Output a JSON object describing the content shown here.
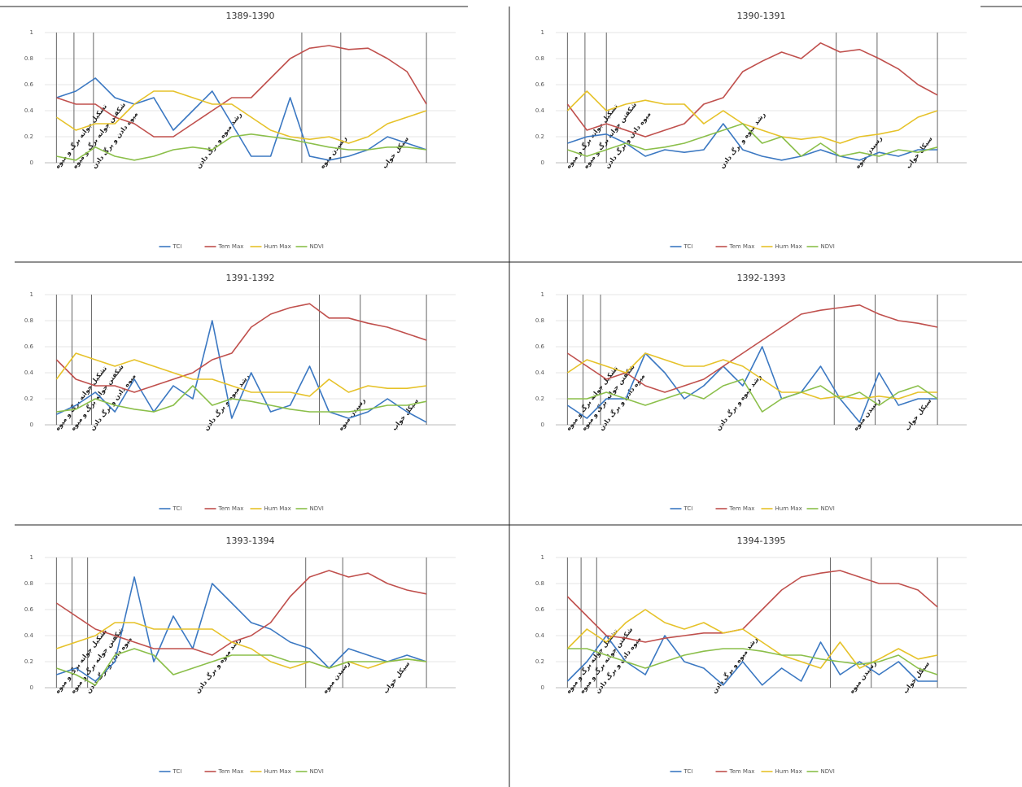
{
  "chart_data": [
    {
      "type": "line",
      "title": "1389-1390",
      "x": [
        0,
        1,
        2,
        3,
        4,
        5,
        6,
        7,
        8,
        9,
        10,
        11,
        12,
        13,
        14,
        15,
        16,
        17,
        18,
        19
      ],
      "xlim": [
        -0.6,
        20.5
      ],
      "ylim": [
        0,
        1
      ],
      "yticks": [
        0,
        0.2,
        0.4,
        0.6,
        0.8,
        1
      ],
      "grid": true,
      "stage_lines": [
        0,
        0.9,
        1.9,
        12.6,
        14.6,
        19
      ],
      "stages": [
        "تشکیل جوانه برگ و میوه",
        "شکفتن جوانه برگ و میوه",
        "میوه دادن و برگ دادن",
        "رشد میوه و برگ دادن",
        "رسیدن میوه",
        "سیکل خواب"
      ],
      "series": [
        {
          "name": "TCI",
          "color": "#3b78c2",
          "values": [
            0.5,
            0.55,
            0.65,
            0.5,
            0.45,
            0.5,
            0.25,
            0.4,
            0.55,
            0.3,
            0.05,
            0.05,
            0.5,
            0.05,
            0.02,
            0.05,
            0.1,
            0.2,
            0.15,
            0.1
          ]
        },
        {
          "name": "Tem Max",
          "color": "#c0504d",
          "values": [
            0.5,
            0.45,
            0.45,
            0.35,
            0.3,
            0.2,
            0.2,
            0.3,
            0.4,
            0.5,
            0.5,
            0.65,
            0.8,
            0.88,
            0.9,
            0.87,
            0.88,
            0.8,
            0.7,
            0.45
          ]
        },
        {
          "name": "Hum Max",
          "color": "#e6c229",
          "values": [
            0.35,
            0.25,
            0.3,
            0.3,
            0.45,
            0.55,
            0.55,
            0.5,
            0.45,
            0.45,
            0.35,
            0.25,
            0.2,
            0.18,
            0.2,
            0.15,
            0.2,
            0.3,
            0.35,
            0.4
          ]
        },
        {
          "name": "NDVI",
          "color": "#8bbf4a",
          "values": [
            0.05,
            0.02,
            0.12,
            0.05,
            0.02,
            0.05,
            0.1,
            0.12,
            0.1,
            0.2,
            0.22,
            0.2,
            0.18,
            0.15,
            0.12,
            0.1,
            0.1,
            0.12,
            0.12,
            0.1
          ]
        }
      ]
    },
    {
      "type": "line",
      "title": "1390-1391",
      "x": [
        0,
        1,
        2,
        3,
        4,
        5,
        6,
        7,
        8,
        9,
        10,
        11,
        12,
        13,
        14,
        15,
        16,
        17,
        18,
        19
      ],
      "xlim": [
        -0.6,
        20.5
      ],
      "ylim": [
        0,
        1
      ],
      "yticks": [
        0,
        0.2,
        0.4,
        0.6,
        0.8,
        1
      ],
      "grid": true,
      "stage_lines": [
        0,
        0.9,
        2,
        13.8,
        15.9,
        19
      ],
      "stages": [
        "تشکیل جوانه برگ و میوه",
        "شکفتن جوانه برگ و میوه",
        "میوه دادن و برگ دادن",
        "رشد میوه و برگ دادن",
        "رسیدن میوه",
        "سیکل خواب"
      ],
      "series": [
        {
          "name": "TCI",
          "color": "#3b78c2",
          "values": [
            0.15,
            0.2,
            0.22,
            0.15,
            0.05,
            0.1,
            0.08,
            0.1,
            0.3,
            0.1,
            0.05,
            0.02,
            0.05,
            0.1,
            0.05,
            0.02,
            0.08,
            0.05,
            0.1,
            0.1
          ]
        },
        {
          "name": "Tem Max",
          "color": "#c0504d",
          "values": [
            0.45,
            0.25,
            0.3,
            0.25,
            0.2,
            0.25,
            0.3,
            0.45,
            0.5,
            0.7,
            0.78,
            0.85,
            0.8,
            0.92,
            0.85,
            0.87,
            0.8,
            0.72,
            0.6,
            0.52
          ]
        },
        {
          "name": "Hum Max",
          "color": "#e6c229",
          "values": [
            0.4,
            0.55,
            0.4,
            0.45,
            0.48,
            0.45,
            0.45,
            0.3,
            0.4,
            0.3,
            0.25,
            0.2,
            0.18,
            0.2,
            0.15,
            0.2,
            0.22,
            0.25,
            0.35,
            0.4
          ]
        },
        {
          "name": "NDVI",
          "color": "#8bbf4a",
          "values": [
            0.1,
            0.05,
            0.1,
            0.15,
            0.1,
            0.12,
            0.15,
            0.2,
            0.25,
            0.3,
            0.15,
            0.2,
            0.05,
            0.15,
            0.05,
            0.08,
            0.05,
            0.1,
            0.08,
            0.12
          ]
        }
      ]
    },
    {
      "type": "line",
      "title": "1391-1392",
      "x": [
        0,
        1,
        2,
        3,
        4,
        5,
        6,
        7,
        8,
        9,
        10,
        11,
        12,
        13,
        14,
        15,
        16,
        17,
        18,
        19
      ],
      "xlim": [
        -0.6,
        20.5
      ],
      "ylim": [
        0,
        1
      ],
      "yticks": [
        0,
        0.2,
        0.4,
        0.6,
        0.8,
        1
      ],
      "grid": true,
      "stage_lines": [
        0,
        0.8,
        1.8,
        13.5,
        15.6,
        19
      ],
      "stages": [
        "تشکیل جوانه برگ و میوه",
        "شکفتن جوانه برگ و میوه",
        "میوه دادن و برگ دادن",
        "رشد میوه و برگ دادن",
        "رسیدن میوه",
        "سیکل خواب"
      ],
      "series": [
        {
          "name": "TCI",
          "color": "#3b78c2",
          "values": [
            0.08,
            0.15,
            0.25,
            0.1,
            0.35,
            0.1,
            0.3,
            0.2,
            0.8,
            0.05,
            0.4,
            0.1,
            0.15,
            0.45,
            0.1,
            0.05,
            0.1,
            0.2,
            0.1,
            0.02
          ]
        },
        {
          "name": "Tem Max",
          "color": "#c0504d",
          "values": [
            0.5,
            0.35,
            0.3,
            0.3,
            0.25,
            0.3,
            0.35,
            0.4,
            0.5,
            0.55,
            0.75,
            0.85,
            0.9,
            0.93,
            0.82,
            0.82,
            0.78,
            0.75,
            0.7,
            0.65
          ]
        },
        {
          "name": "Hum Max",
          "color": "#e6c229",
          "values": [
            0.35,
            0.55,
            0.5,
            0.45,
            0.5,
            0.45,
            0.4,
            0.35,
            0.35,
            0.3,
            0.25,
            0.25,
            0.25,
            0.22,
            0.35,
            0.25,
            0.3,
            0.28,
            0.28,
            0.3
          ]
        },
        {
          "name": "NDVI",
          "color": "#8bbf4a",
          "values": [
            0.1,
            0.12,
            0.2,
            0.15,
            0.12,
            0.1,
            0.15,
            0.3,
            0.15,
            0.2,
            0.18,
            0.15,
            0.12,
            0.1,
            0.1,
            0.1,
            0.12,
            0.15,
            0.15,
            0.18
          ]
        }
      ]
    },
    {
      "type": "line",
      "title": "1392-1393",
      "x": [
        0,
        1,
        2,
        3,
        4,
        5,
        6,
        7,
        8,
        9,
        10,
        11,
        12,
        13,
        14,
        15,
        16,
        17,
        18,
        19
      ],
      "xlim": [
        -0.6,
        20.5
      ],
      "ylim": [
        0,
        1
      ],
      "yticks": [
        0,
        0.2,
        0.4,
        0.6,
        0.8,
        1
      ],
      "grid": true,
      "stage_lines": [
        0,
        0.8,
        1.7,
        13.7,
        15.8,
        19
      ],
      "stages": [
        "تشکیل جوانه برگ و میوه",
        "شکفتن جوانه برگ و میوه",
        "میوه دادن و برگ دادن",
        "رشد میوه و برگ دادن",
        "رسیدن میوه",
        "سیکل خواب"
      ],
      "series": [
        {
          "name": "TCI",
          "color": "#3b78c2",
          "values": [
            0.15,
            0.05,
            0.2,
            0.2,
            0.55,
            0.4,
            0.2,
            0.3,
            0.45,
            0.3,
            0.6,
            0.2,
            0.25,
            0.45,
            0.2,
            0.02,
            0.4,
            0.15,
            0.2,
            0.2
          ]
        },
        {
          "name": "Tem Max",
          "color": "#c0504d",
          "values": [
            0.55,
            0.45,
            0.35,
            0.4,
            0.3,
            0.25,
            0.3,
            0.35,
            0.45,
            0.55,
            0.65,
            0.75,
            0.85,
            0.88,
            0.9,
            0.92,
            0.85,
            0.8,
            0.78,
            0.75
          ]
        },
        {
          "name": "Hum Max",
          "color": "#e6c229",
          "values": [
            0.4,
            0.5,
            0.45,
            0.4,
            0.55,
            0.5,
            0.45,
            0.45,
            0.5,
            0.45,
            0.35,
            0.25,
            0.25,
            0.2,
            0.22,
            0.2,
            0.22,
            0.2,
            0.25,
            0.25
          ]
        },
        {
          "name": "NDVI",
          "color": "#8bbf4a",
          "values": [
            0.2,
            0.2,
            0.25,
            0.2,
            0.15,
            0.2,
            0.25,
            0.2,
            0.3,
            0.35,
            0.1,
            0.2,
            0.25,
            0.3,
            0.2,
            0.25,
            0.15,
            0.25,
            0.3,
            0.2
          ]
        }
      ]
    },
    {
      "type": "line",
      "title": "1393-1394",
      "x": [
        0,
        1,
        2,
        3,
        4,
        5,
        6,
        7,
        8,
        9,
        10,
        11,
        12,
        13,
        14,
        15,
        16,
        17,
        18,
        19
      ],
      "xlim": [
        -0.6,
        20.5
      ],
      "ylim": [
        0,
        1
      ],
      "yticks": [
        0,
        0.2,
        0.4,
        0.6,
        0.8,
        1
      ],
      "grid": true,
      "stage_lines": [
        0,
        0.8,
        1.6,
        12.8,
        14.7,
        19
      ],
      "stages": [
        "تشکیل جوانه برگ و میوه",
        "شکفتن جوانه برگ و میوه",
        "میوه دادن و برگ دادن",
        "رشد میوه و برگ دادن",
        "رسیدن میوه",
        "سیکل خواب"
      ],
      "series": [
        {
          "name": "TCI",
          "color": "#3b78c2",
          "values": [
            0.1,
            0.15,
            0.05,
            0.2,
            0.85,
            0.2,
            0.55,
            0.3,
            0.8,
            0.65,
            0.5,
            0.45,
            0.35,
            0.3,
            0.15,
            0.3,
            0.25,
            0.2,
            0.25,
            0.2
          ]
        },
        {
          "name": "Tem Max",
          "color": "#c0504d",
          "values": [
            0.65,
            0.55,
            0.45,
            0.4,
            0.35,
            0.3,
            0.3,
            0.3,
            0.25,
            0.35,
            0.4,
            0.5,
            0.7,
            0.85,
            0.9,
            0.85,
            0.88,
            0.8,
            0.75,
            0.72
          ]
        },
        {
          "name": "Hum Max",
          "color": "#e6c229",
          "values": [
            0.3,
            0.35,
            0.4,
            0.5,
            0.5,
            0.45,
            0.45,
            0.45,
            0.45,
            0.35,
            0.3,
            0.2,
            0.15,
            0.2,
            0.15,
            0.2,
            0.15,
            0.2,
            0.22,
            0.2
          ]
        },
        {
          "name": "NDVI",
          "color": "#8bbf4a",
          "values": [
            0.15,
            0.1,
            0.02,
            0.25,
            0.3,
            0.25,
            0.1,
            0.15,
            0.2,
            0.25,
            0.25,
            0.25,
            0.2,
            0.2,
            0.15,
            0.2,
            0.2,
            0.2,
            0.22,
            0.2
          ]
        }
      ]
    },
    {
      "type": "line",
      "title": "1394-1395",
      "x": [
        0,
        1,
        2,
        3,
        4,
        5,
        6,
        7,
        8,
        9,
        10,
        11,
        12,
        13,
        14,
        15,
        16,
        17,
        18,
        19
      ],
      "xlim": [
        -0.6,
        20.5
      ],
      "ylim": [
        0,
        1
      ],
      "yticks": [
        0,
        0.2,
        0.4,
        0.6,
        0.8,
        1
      ],
      "grid": true,
      "stage_lines": [
        0,
        0.7,
        1.5,
        13.5,
        15.6,
        19
      ],
      "stages": [
        "تشکیل جوانه برگ و میوه",
        "شکفتن جوانه برگ و میوه",
        "میوه دادن و برگ دادن",
        "رشد میوه و برگ دادن",
        "رسیدن میوه",
        "سیکل خواب"
      ],
      "series": [
        {
          "name": "TCI",
          "color": "#3b78c2",
          "values": [
            0.05,
            0.2,
            0.4,
            0.2,
            0.1,
            0.4,
            0.2,
            0.15,
            0.02,
            0.2,
            0.02,
            0.15,
            0.05,
            0.35,
            0.1,
            0.2,
            0.1,
            0.2,
            0.05,
            0.05
          ]
        },
        {
          "name": "Tem Max",
          "color": "#c0504d",
          "values": [
            0.7,
            0.55,
            0.4,
            0.38,
            0.35,
            0.38,
            0.4,
            0.42,
            0.42,
            0.45,
            0.6,
            0.75,
            0.85,
            0.88,
            0.9,
            0.85,
            0.8,
            0.8,
            0.75,
            0.62
          ]
        },
        {
          "name": "Hum Max",
          "color": "#e6c229",
          "values": [
            0.3,
            0.45,
            0.35,
            0.5,
            0.6,
            0.5,
            0.45,
            0.5,
            0.42,
            0.45,
            0.35,
            0.25,
            0.2,
            0.15,
            0.35,
            0.15,
            0.22,
            0.3,
            0.22,
            0.25
          ]
        },
        {
          "name": "NDVI",
          "color": "#8bbf4a",
          "values": [
            0.3,
            0.3,
            0.25,
            0.2,
            0.15,
            0.2,
            0.25,
            0.28,
            0.3,
            0.3,
            0.28,
            0.25,
            0.25,
            0.22,
            0.2,
            0.18,
            0.2,
            0.25,
            0.15,
            0.1
          ]
        }
      ]
    }
  ]
}
